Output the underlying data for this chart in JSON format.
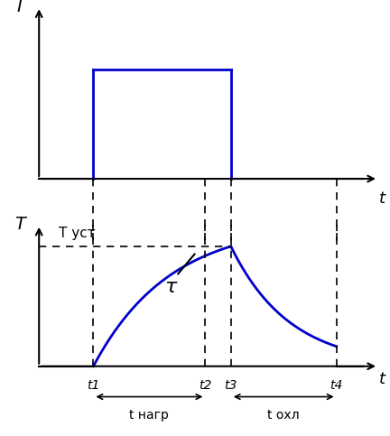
{
  "fig_width": 4.32,
  "fig_height": 4.83,
  "dpi": 100,
  "bg_color": "#ffffff",
  "line_color": "#0000cc",
  "axis_color": "#000000",
  "t1": 0.17,
  "t2": 0.52,
  "t3": 0.6,
  "t4": 0.93,
  "current_level": 0.68,
  "temp_peak": 0.87,
  "tau_label": "τ",
  "T_ust_label": "T уст",
  "I_label": "I",
  "T_label": "T",
  "t_label": "t",
  "t1_label": "t1",
  "t2_label": "t2",
  "t3_label": "t3",
  "t4_label": "t4",
  "t_nagr_label": "t нагр",
  "t_okhl_label": "t охл"
}
